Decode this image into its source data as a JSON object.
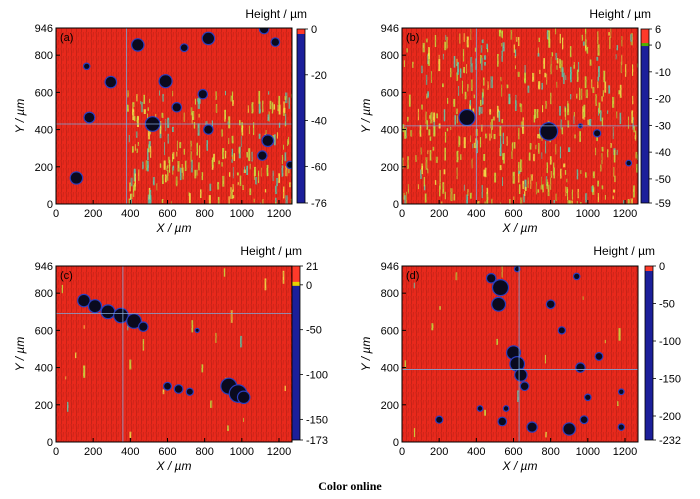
{
  "caption": "Color online",
  "colors": {
    "surface": "#e8291c",
    "pit": "#1a1f8f",
    "cbar_top": "#ff3a2a",
    "cbar_blue": "#1c1f9a",
    "grid": "#7fa7d8",
    "speckle": "#c8e040",
    "pit_edge": "#2a3fc0"
  },
  "chart_data": [
    {
      "type": "heatmap",
      "panel_label": "(a)",
      "xlabel": "X / µm",
      "ylabel": "Y / µm",
      "colorbar_title": "Height / µm",
      "x_ticks": [
        "0",
        "200",
        "400",
        "600",
        "800",
        "1000",
        "1200"
      ],
      "y_ticks": [
        "0",
        "200",
        "400",
        "600",
        "800",
        "946"
      ],
      "colorbar_ticks": [
        "0",
        "-20",
        "-40",
        "-60",
        "-76"
      ],
      "colorbar_range": [
        -76,
        0
      ],
      "xlim": [
        0,
        1270
      ],
      "ylim": [
        0,
        946
      ],
      "crosshair": {
        "x": 380,
        "y": 430
      },
      "pits": [
        {
          "x": 110,
          "y": 140,
          "r": 30
        },
        {
          "x": 180,
          "y": 465,
          "r": 26
        },
        {
          "x": 295,
          "y": 655,
          "r": 28
        },
        {
          "x": 440,
          "y": 855,
          "r": 30
        },
        {
          "x": 520,
          "y": 430,
          "r": 36
        },
        {
          "x": 590,
          "y": 660,
          "r": 32
        },
        {
          "x": 650,
          "y": 520,
          "r": 22
        },
        {
          "x": 690,
          "y": 840,
          "r": 18
        },
        {
          "x": 790,
          "y": 590,
          "r": 22
        },
        {
          "x": 820,
          "y": 890,
          "r": 30
        },
        {
          "x": 820,
          "y": 400,
          "r": 22
        },
        {
          "x": 1120,
          "y": 940,
          "r": 22
        },
        {
          "x": 1110,
          "y": 260,
          "r": 22
        },
        {
          "x": 1140,
          "y": 340,
          "r": 28
        },
        {
          "x": 1180,
          "y": 870,
          "r": 20
        },
        {
          "x": 1260,
          "y": 210,
          "r": 16
        },
        {
          "x": 165,
          "y": 740,
          "r": 14
        }
      ],
      "speckle_density": 0.45
    },
    {
      "type": "heatmap",
      "panel_label": "(b)",
      "xlabel": "X / µm",
      "ylabel": "Y / µm",
      "colorbar_title": "Height / µm",
      "x_ticks": [
        "0",
        "200",
        "400",
        "600",
        "800",
        "1000",
        "1200"
      ],
      "y_ticks": [
        "0",
        "200",
        "400",
        "600",
        "800",
        "946"
      ],
      "colorbar_ticks": [
        "6",
        "0",
        "-10",
        "-20",
        "-30",
        "-40",
        "-50",
        "-59"
      ],
      "colorbar_range": [
        -59,
        6
      ],
      "xlim": [
        0,
        1270
      ],
      "ylim": [
        0,
        946
      ],
      "crosshair": {
        "x": 400,
        "y": 420
      },
      "pits": [
        {
          "x": 350,
          "y": 465,
          "r": 40
        },
        {
          "x": 790,
          "y": 390,
          "r": 44
        },
        {
          "x": 1050,
          "y": 380,
          "r": 16
        },
        {
          "x": 1220,
          "y": 220,
          "r": 12
        },
        {
          "x": 960,
          "y": 420,
          "r": 8
        }
      ],
      "speckle_density": 0.85
    },
    {
      "type": "heatmap",
      "panel_label": "(c)",
      "xlabel": "X / µm",
      "ylabel": "Y / µm",
      "colorbar_title": "Height / µm",
      "x_ticks": [
        "0",
        "200",
        "400",
        "600",
        "800",
        "1000",
        "1200"
      ],
      "y_ticks": [
        "0",
        "200",
        "400",
        "600",
        "800",
        "946"
      ],
      "colorbar_ticks": [
        "21",
        "0",
        "-50",
        "-100",
        "-150",
        "-173"
      ],
      "colorbar_range": [
        -173,
        21
      ],
      "xlim": [
        0,
        1270
      ],
      "ylim": [
        0,
        946
      ],
      "crosshair": {
        "x": 360,
        "y": 690
      },
      "pits": [
        {
          "x": 150,
          "y": 760,
          "r": 30
        },
        {
          "x": 210,
          "y": 730,
          "r": 32
        },
        {
          "x": 280,
          "y": 700,
          "r": 34
        },
        {
          "x": 350,
          "y": 680,
          "r": 36
        },
        {
          "x": 420,
          "y": 650,
          "r": 36
        },
        {
          "x": 470,
          "y": 620,
          "r": 22
        },
        {
          "x": 600,
          "y": 300,
          "r": 18
        },
        {
          "x": 660,
          "y": 285,
          "r": 20
        },
        {
          "x": 720,
          "y": 270,
          "r": 16
        },
        {
          "x": 930,
          "y": 300,
          "r": 40
        },
        {
          "x": 980,
          "y": 260,
          "r": 44
        },
        {
          "x": 1010,
          "y": 240,
          "r": 30
        },
        {
          "x": 760,
          "y": 600,
          "r": 8
        }
      ],
      "speckle_density": 0.05
    },
    {
      "type": "heatmap",
      "panel_label": "(d)",
      "xlabel": "X / µm",
      "ylabel": "Y / µm",
      "colorbar_title": "Height / µm",
      "x_ticks": [
        "0",
        "200",
        "400",
        "600",
        "800",
        "1000",
        "1200"
      ],
      "y_ticks": [
        "0",
        "200",
        "400",
        "600",
        "800",
        "946"
      ],
      "colorbar_ticks": [
        "0",
        "-50",
        "-100",
        "-150",
        "-200",
        "-232"
      ],
      "colorbar_range": [
        -232,
        0
      ],
      "xlim": [
        0,
        1270
      ],
      "ylim": [
        0,
        946
      ],
      "crosshair": {
        "x": 630,
        "y": 390
      },
      "pits": [
        {
          "x": 530,
          "y": 830,
          "r": 40
        },
        {
          "x": 520,
          "y": 740,
          "r": 34
        },
        {
          "x": 480,
          "y": 880,
          "r": 22
        },
        {
          "x": 600,
          "y": 480,
          "r": 34
        },
        {
          "x": 620,
          "y": 420,
          "r": 36
        },
        {
          "x": 640,
          "y": 360,
          "r": 30
        },
        {
          "x": 660,
          "y": 300,
          "r": 20
        },
        {
          "x": 800,
          "y": 740,
          "r": 20
        },
        {
          "x": 860,
          "y": 600,
          "r": 16
        },
        {
          "x": 960,
          "y": 400,
          "r": 22
        },
        {
          "x": 1060,
          "y": 460,
          "r": 18
        },
        {
          "x": 200,
          "y": 120,
          "r": 16
        },
        {
          "x": 540,
          "y": 110,
          "r": 20
        },
        {
          "x": 700,
          "y": 80,
          "r": 24
        },
        {
          "x": 900,
          "y": 70,
          "r": 30
        },
        {
          "x": 980,
          "y": 120,
          "r": 18
        },
        {
          "x": 560,
          "y": 180,
          "r": 12
        },
        {
          "x": 420,
          "y": 180,
          "r": 12
        },
        {
          "x": 940,
          "y": 890,
          "r": 14
        },
        {
          "x": 1000,
          "y": 240,
          "r": 14
        },
        {
          "x": 620,
          "y": 930,
          "r": 12
        },
        {
          "x": 1180,
          "y": 270,
          "r": 12
        },
        {
          "x": 1180,
          "y": 80,
          "r": 14
        }
      ],
      "speckle_density": 0.03
    }
  ]
}
